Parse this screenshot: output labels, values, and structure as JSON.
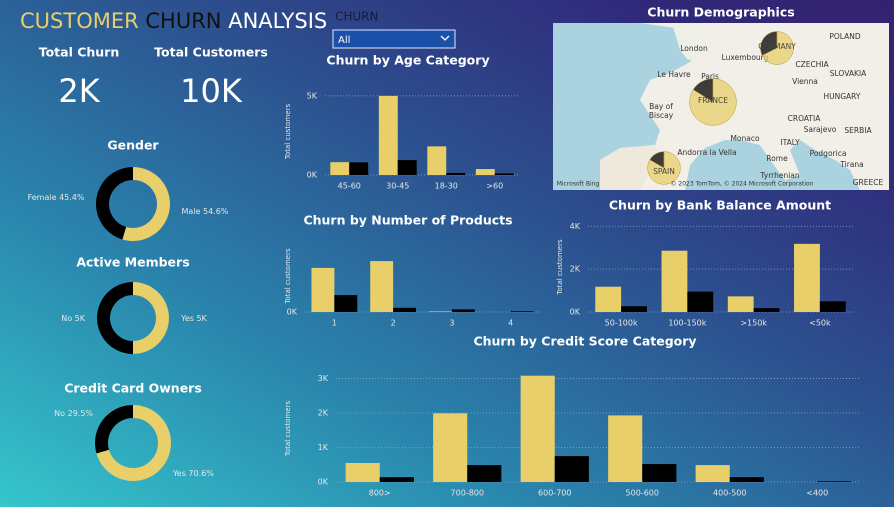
{
  "header": {
    "title_parts": [
      "CUSTOMER",
      "CHURN",
      "ANALYSIS"
    ]
  },
  "kpis": [
    {
      "label": "Total Churn",
      "value": "2K"
    },
    {
      "label": "Total Customers",
      "value": "10K"
    }
  ],
  "slicer": {
    "label": "CHURN",
    "selected": "All"
  },
  "chart_data": [
    {
      "type": "donut",
      "title": "Gender",
      "categories": [
        "Female",
        "Male"
      ],
      "values": [
        45.4,
        54.6
      ],
      "value_labels": [
        "45.4%",
        "54.6%"
      ],
      "colors": [
        "#000000",
        "#e8cf6a"
      ]
    },
    {
      "type": "donut",
      "title": "Active Members",
      "categories": [
        "No",
        "Yes"
      ],
      "values": [
        5000,
        5000
      ],
      "value_labels": [
        "5K",
        "5K"
      ],
      "colors": [
        "#000000",
        "#e8cf6a"
      ]
    },
    {
      "type": "donut",
      "title": "Credit Card Owners",
      "categories": [
        "No",
        "Yes"
      ],
      "values": [
        29.5,
        70.6
      ],
      "value_labels": [
        "29.5%",
        "70.6%"
      ],
      "colors": [
        "#000000",
        "#e8cf6a"
      ]
    },
    {
      "type": "bar",
      "title": "Churn by Age Category",
      "y_label": "Total customers",
      "categories": [
        "45-60",
        "30-45",
        "18-30",
        ">60"
      ],
      "series": [
        {
          "color": "#e8cf6a",
          "values": [
            810,
            5000,
            1810,
            375
          ]
        },
        {
          "color": "#000000",
          "values": [
            800,
            940,
            130,
            100
          ]
        }
      ],
      "ylim": [
        0,
        5500
      ],
      "yticks": [
        {
          "value": 0,
          "label": "0K"
        },
        {
          "value": 5000,
          "label": "5K"
        }
      ],
      "grid": true
    },
    {
      "type": "bar",
      "title": "Churn by Number of Products",
      "y_label": "Total customers",
      "categories": [
        "1",
        "2",
        "3",
        "4"
      ],
      "series": [
        {
          "color": "#e8cf6a",
          "values": [
            3675,
            4242,
            46,
            0
          ]
        },
        {
          "color": "#000000",
          "values": [
            1409,
            348,
            220,
            60
          ]
        }
      ],
      "ylim": [
        0,
        6000
      ],
      "yticks": [
        {
          "value": 0,
          "label": "0K"
        }
      ],
      "grid": true
    },
    {
      "type": "bar",
      "title": "Churn by Bank Balance Amount",
      "y_label": "Total customers",
      "categories": [
        "50-100k",
        "100-150k",
        ">150k",
        "<50k"
      ],
      "series": [
        {
          "color": "#e8cf6a",
          "values": [
            1180,
            2860,
            730,
            3180
          ]
        },
        {
          "color": "#000000",
          "values": [
            270,
            950,
            180,
            500
          ]
        }
      ],
      "ylim": [
        0,
        4200
      ],
      "yticks": [
        {
          "value": 0,
          "label": "0K"
        },
        {
          "value": 2000,
          "label": "2K"
        },
        {
          "value": 4000,
          "label": "4K"
        }
      ],
      "grid": true
    },
    {
      "type": "bar",
      "title": "Churn by Credit Score Category",
      "y_label": "Total customers",
      "categories": [
        "800>",
        "700-800",
        "600-700",
        "500-600",
        "400-500",
        "<400"
      ],
      "series": [
        {
          "color": "#e8cf6a",
          "values": [
            550,
            1990,
            3080,
            1930,
            490,
            0
          ]
        },
        {
          "color": "#000000",
          "values": [
            140,
            490,
            750,
            520,
            140,
            20
          ]
        }
      ],
      "ylim": [
        0,
        3100
      ],
      "yticks": [
        {
          "value": 0,
          "label": "0K"
        },
        {
          "value": 1000,
          "label": "1K"
        },
        {
          "value": 2000,
          "label": "2K"
        },
        {
          "value": 3000,
          "label": "3K"
        }
      ],
      "grid": true
    },
    {
      "type": "map",
      "title": "Churn Demographics",
      "categories": [
        "GERMANY",
        "FRANCE",
        "SPAIN"
      ],
      "series": [
        {
          "color": "#000000",
          "values": [
            814,
            810,
            413
          ]
        },
        {
          "color": "#e8cf6a",
          "values": [
            1695,
            4204,
            2064
          ]
        }
      ],
      "labels": [
        "London",
        "Luxembourg",
        "Le Havre",
        "Paris",
        "Bay of",
        "Biscay",
        "POLAND",
        "CZECHIA",
        "SLOVAKIA",
        "Vienna",
        "HUNGARY",
        "CROATIA",
        "Sarajevo",
        "SERBIA",
        "ITALY",
        "Rome",
        "Monaco",
        "Andorra la Vella",
        "Podgorica",
        "Tirana",
        "Tyrrhenian",
        "GREECE"
      ],
      "credits": [
        "Microsoft Bing",
        "© 2023 TomTom, © 2024 Microsoft Corporation"
      ]
    }
  ]
}
